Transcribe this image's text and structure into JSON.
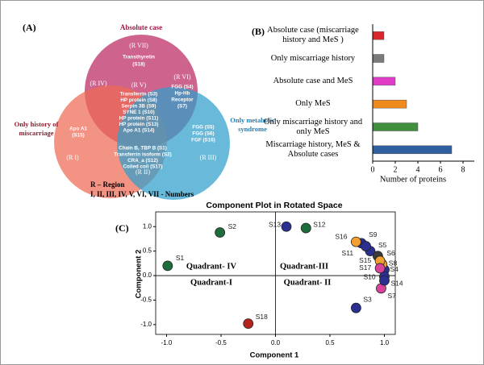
{
  "venn": {
    "label": "(A)",
    "sets": [
      {
        "lines": [
          "Absolute case"
        ]
      },
      {
        "lines": [
          "Only history of",
          "miscarriage"
        ]
      },
      {
        "lines": [
          "Only metabolic",
          "syndrome"
        ]
      }
    ],
    "regions": [
      {
        "label": "(R I)",
        "items": [
          "Apo A1",
          "(S15)"
        ]
      },
      {
        "label": "(R II)",
        "items": [
          "Chain B, TBP B (S1)",
          "Transferrin isoform (S2)",
          "CRA_a (S12)",
          "Coiled coil (S17)"
        ]
      },
      {
        "label": "(R III)",
        "items": [
          "FGG (S5)",
          "FGG (S6)",
          "FGF (S16)"
        ]
      },
      {
        "label": "(R IV)"
      },
      {
        "label": "(R V)",
        "items": [
          "Transferrin (S3)",
          "HP protein (S8)",
          "Serpin 3B (S9)",
          "SYNE 1 (S10)",
          "HP protein (S11)",
          "HP protein (S13)",
          "Apo A1 (S14)"
        ]
      },
      {
        "label": "(R VI)",
        "items": [
          "FGG (S4)",
          "Hp-Hb",
          "Receptor",
          "(S7)"
        ]
      },
      {
        "label": "(R VII)",
        "items": [
          "Transthyretin",
          "(S18)"
        ]
      }
    ],
    "note": [
      "R – Region",
      "I, II, III, IV, V, VI, VII - Numbers"
    ]
  },
  "chart_data": [
    {
      "type": "bar",
      "label": "(B)",
      "orientation": "horizontal",
      "categories": [
        "Absolute case (miscarriage history and MeS )",
        "Only miscarriage history",
        "Absolute case and MeS",
        "Only MeS",
        "Only miscarriage history and only MeS",
        "Miscarriage history, MeS & Absolute cases"
      ],
      "values": [
        1,
        1,
        2,
        3,
        4,
        7
      ],
      "colors": [
        "#d9262b",
        "#7a7a7a",
        "#e03cc8",
        "#f08a1c",
        "#3f8f3f",
        "#2f5fa0"
      ],
      "xlim": [
        0,
        9
      ],
      "xticks": [
        0,
        2,
        4,
        6,
        8
      ],
      "xlabel": "Number of proteins"
    },
    {
      "type": "scatter",
      "label": "(C)",
      "title": "Component Plot in Rotated Space",
      "xlabel": "Component 1",
      "ylabel": "Component 2",
      "xlim": [
        -1.1,
        1.1
      ],
      "ylim": [
        -1.2,
        1.3
      ],
      "xticks": [
        {
          "value": -1,
          "label": "-1.0"
        },
        {
          "value": -0.5,
          "label": "-0.5"
        },
        {
          "value": 0,
          "label": "0.0"
        },
        {
          "value": 0.5,
          "label": "0.5"
        },
        {
          "value": 1,
          "label": "1.0"
        }
      ],
      "yticks": [
        {
          "value": 1,
          "label": "1.0"
        },
        {
          "value": 0.5,
          "label": "0.5"
        },
        {
          "value": 0,
          "label": "0.0"
        },
        {
          "value": -0.5,
          "label": "-0.5"
        },
        {
          "value": -1,
          "label": "-1.0"
        }
      ],
      "point_labels": [
        "S1",
        "S2",
        "S3",
        "S4",
        "S5",
        "S6",
        "S7",
        "S8",
        "S9",
        "S10",
        "S11",
        "S12",
        "S13",
        "S14",
        "S15",
        "S16",
        "S17",
        "S18"
      ],
      "x": [
        -0.99,
        -0.51,
        0.74,
        1.0,
        0.87,
        0.94,
        0.97,
        0.98,
        0.79,
        1.0,
        0.83,
        0.28,
        0.1,
        1.0,
        0.96,
        0.74,
        0.96,
        -0.25
      ],
      "y": [
        0.2,
        0.88,
        -0.66,
        0.12,
        0.5,
        0.4,
        -0.26,
        0.23,
        0.66,
        -0.02,
        0.6,
        0.97,
        1.0,
        -0.1,
        0.3,
        0.69,
        0.15,
        -0.98
      ],
      "colors": [
        "#1e6b3c",
        "#1e6b3c",
        "#2b2f8f",
        "#2b2f8f",
        "#2b2f8f",
        "#3a3a3a",
        "#d9439a",
        "#f2a030",
        "#2b2f8f",
        "#2b2f8f",
        "#2b2f8f",
        "#1e6b3c",
        "#2b2f8f",
        "#2b2f8f",
        "#f2a030",
        "#f2a030",
        "#d9439a",
        "#b5231f"
      ],
      "annotations": [
        "Quadrant- IV",
        "Quadrant-III",
        "Quadrant-I",
        "Quadrant- II"
      ]
    }
  ]
}
